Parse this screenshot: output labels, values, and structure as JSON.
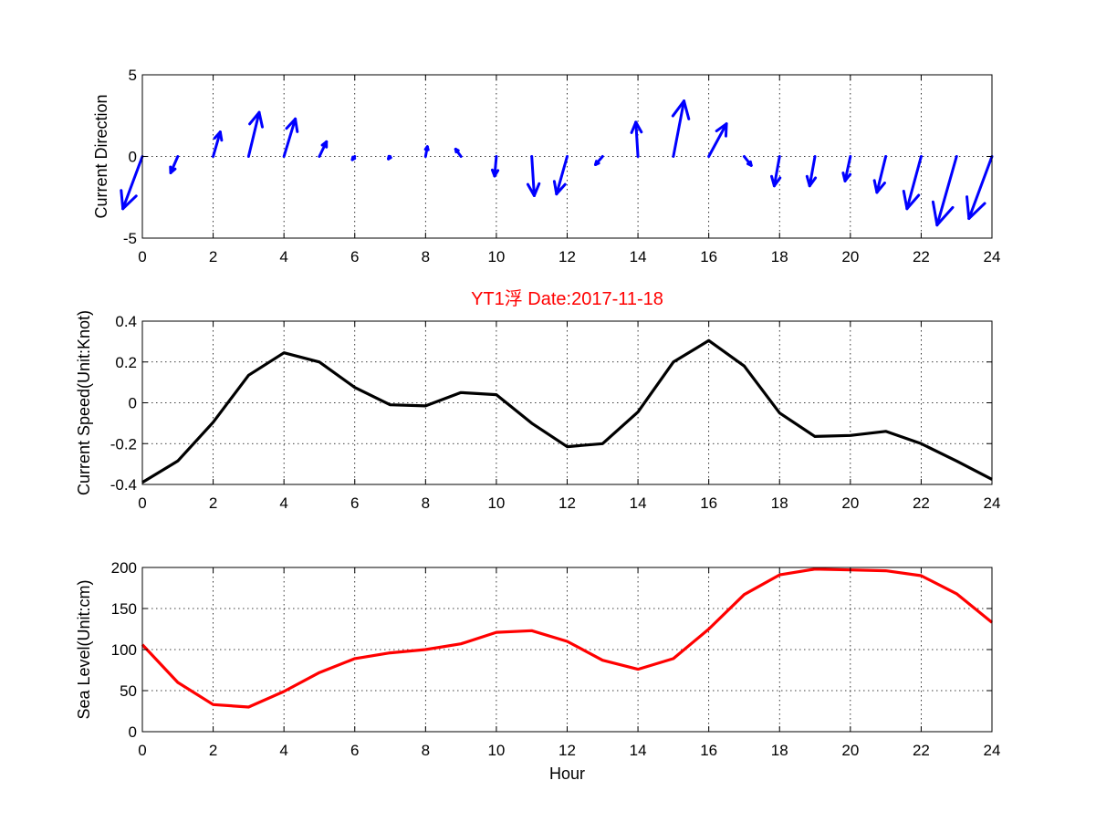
{
  "colors": {
    "direction": "#0000ff",
    "speed": "#000000",
    "level": "#ff0000",
    "title": "#ff0000"
  },
  "chart_data": [
    {
      "type": "quiver",
      "ylabel": "Current Direction",
      "xlim": [
        0,
        24
      ],
      "ylim": [
        -5,
        5
      ],
      "xticks": [
        "0",
        "2",
        "4",
        "6",
        "8",
        "10",
        "12",
        "14",
        "16",
        "18",
        "20",
        "22",
        "24"
      ],
      "yticks": [
        "-5",
        "0",
        "5"
      ],
      "grid": true,
      "x": [
        0,
        1,
        2,
        3,
        4,
        5,
        6,
        7,
        8,
        9,
        10,
        11,
        12,
        13,
        14,
        15,
        16,
        17,
        18,
        19,
        20,
        21,
        22,
        23,
        24
      ],
      "u": [
        -0.55,
        -0.2,
        0.2,
        0.3,
        0.32,
        0.2,
        -0.07,
        -0.05,
        0.05,
        -0.15,
        -0.05,
        0.07,
        -0.3,
        -0.2,
        -0.06,
        0.3,
        0.5,
        0.2,
        -0.15,
        -0.15,
        -0.15,
        -0.25,
        -0.4,
        -0.55,
        -0.65
      ],
      "v": [
        -3.2,
        -1.0,
        1.5,
        2.7,
        2.3,
        0.9,
        -0.2,
        -0.15,
        0.6,
        0.45,
        -1.2,
        -2.4,
        -2.3,
        -0.5,
        2.1,
        3.4,
        2.0,
        -0.55,
        -1.8,
        -1.8,
        -1.5,
        -2.2,
        -3.2,
        -4.2,
        -3.8
      ]
    },
    {
      "type": "line",
      "title": "YT1浮   Date:2017-11-18",
      "ylabel": "Current Speed(Unit:Knot)",
      "xlim": [
        0,
        24
      ],
      "ylim": [
        -0.4,
        0.4
      ],
      "xticks": [
        "0",
        "2",
        "4",
        "6",
        "8",
        "10",
        "12",
        "14",
        "16",
        "18",
        "20",
        "22",
        "24"
      ],
      "yticks": [
        "-0.4",
        "-0.2",
        "0",
        "0.2",
        "0.4"
      ],
      "grid": true,
      "x": [
        0,
        1,
        2,
        3,
        4,
        5,
        6,
        7,
        8,
        9,
        10,
        11,
        12,
        13,
        14,
        15,
        16,
        17,
        18,
        19,
        20,
        21,
        22,
        23,
        24
      ],
      "values": [
        -0.39,
        -0.285,
        -0.095,
        0.135,
        0.245,
        0.2,
        0.075,
        -0.01,
        -0.015,
        0.05,
        0.04,
        -0.1,
        -0.215,
        -0.2,
        -0.045,
        0.2,
        0.305,
        0.18,
        -0.05,
        -0.165,
        -0.16,
        -0.14,
        -0.2,
        -0.285,
        -0.375
      ]
    },
    {
      "type": "line",
      "xlabel": "Hour",
      "ylabel": "Sea Level(Unit:cm)",
      "xlim": [
        0,
        24
      ],
      "ylim": [
        0,
        200
      ],
      "xticks": [
        "0",
        "2",
        "4",
        "6",
        "8",
        "10",
        "12",
        "14",
        "16",
        "18",
        "20",
        "22",
        "24"
      ],
      "yticks": [
        "0",
        "50",
        "100",
        "150",
        "200"
      ],
      "grid": true,
      "x": [
        0,
        1,
        2,
        3,
        4,
        5,
        6,
        7,
        8,
        9,
        10,
        11,
        12,
        13,
        14,
        15,
        16,
        17,
        18,
        19,
        20,
        21,
        22,
        23,
        24
      ],
      "values": [
        106,
        60,
        33,
        30,
        49,
        72,
        89,
        96,
        100,
        107,
        121,
        123,
        110,
        87,
        76,
        89,
        125,
        167,
        191,
        198,
        197,
        196,
        190,
        168,
        133
      ]
    }
  ]
}
